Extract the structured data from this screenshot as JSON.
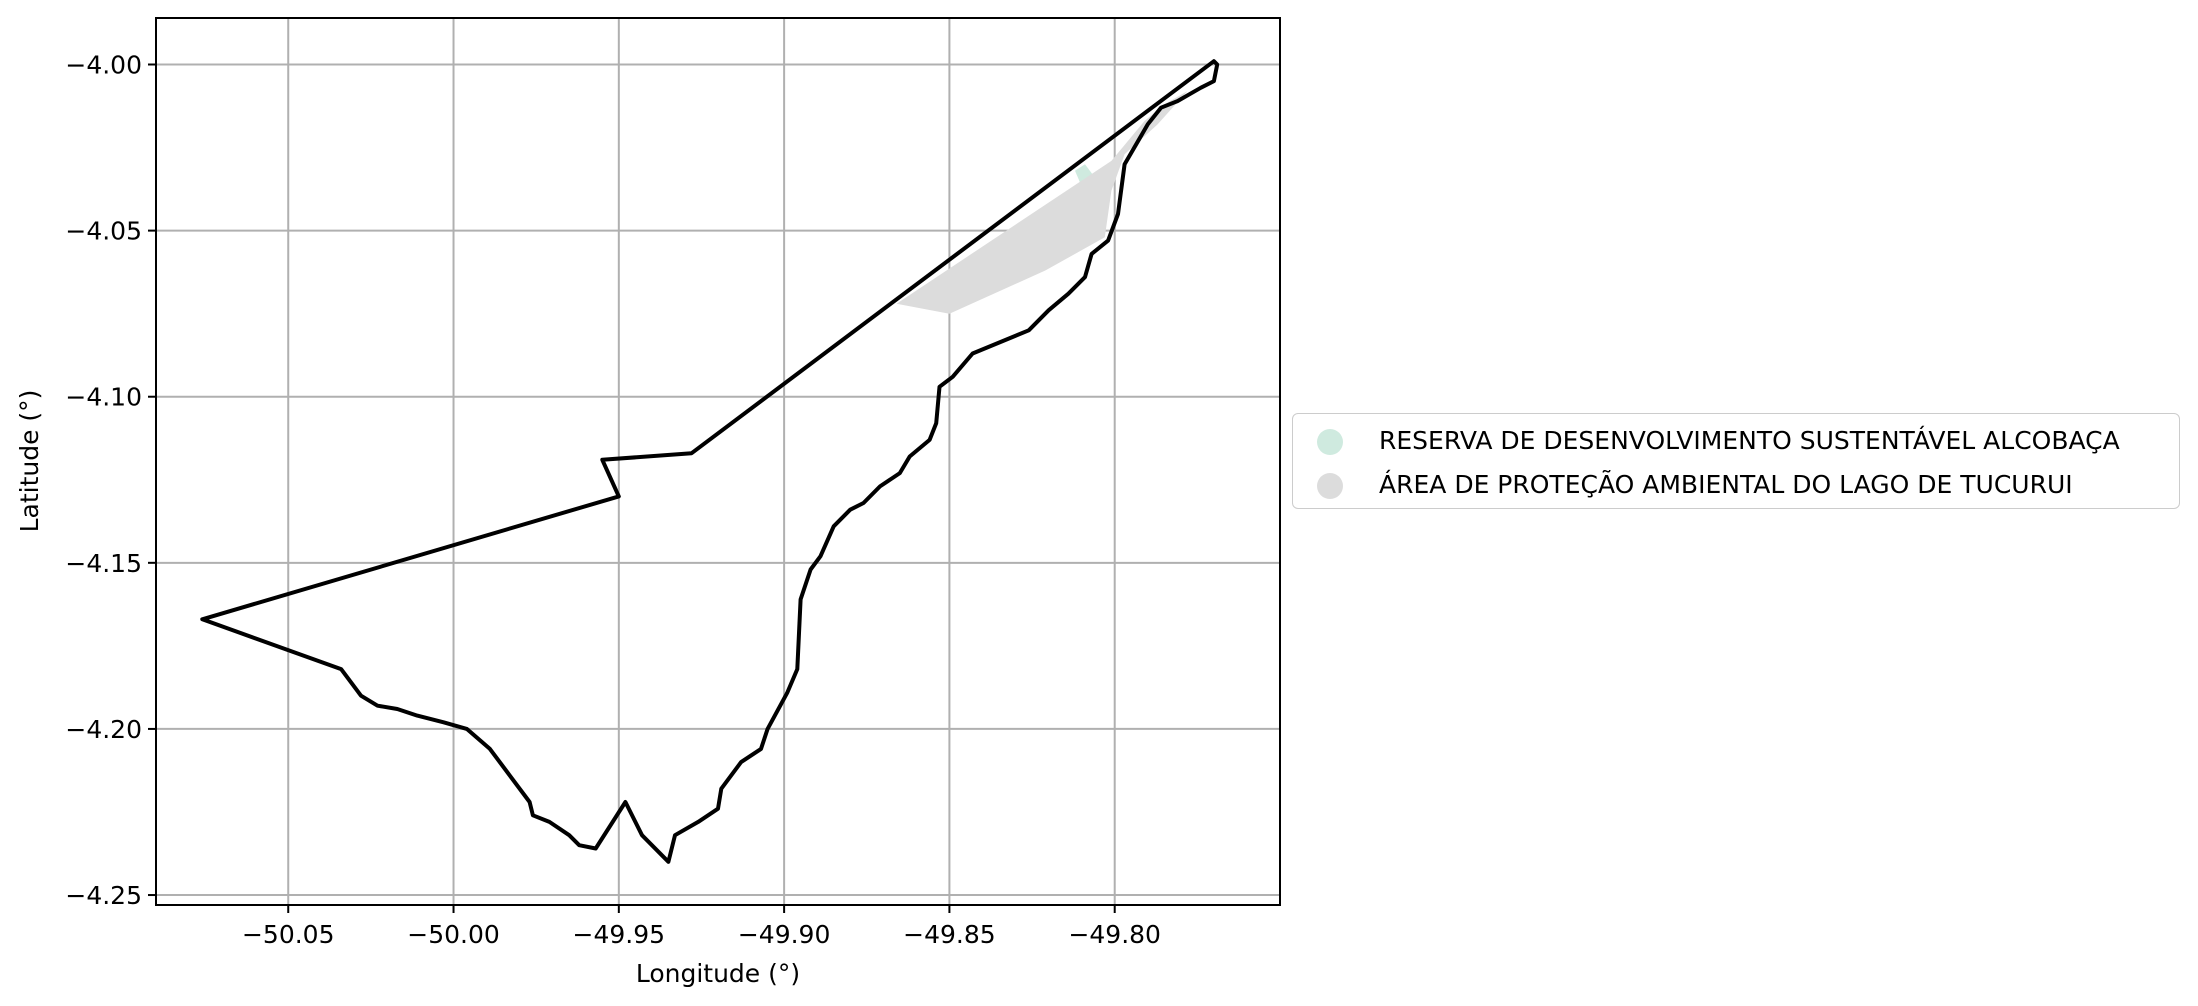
{
  "chart_data": {
    "type": "map",
    "xlabel": "Longitude (°)",
    "ylabel": "Latitude (°)",
    "xlim": [
      -50.09,
      -49.75
    ],
    "ylim": [
      -4.253,
      -3.986
    ],
    "xticks": [
      -50.05,
      -50.0,
      -49.95,
      -49.9,
      -49.85,
      -49.8
    ],
    "xtick_labels": [
      "−50.05",
      "−50.00",
      "−49.95",
      "−49.90",
      "−49.85",
      "−49.80"
    ],
    "yticks": [
      -4.0,
      -4.05,
      -4.1,
      -4.15,
      -4.2,
      -4.25
    ],
    "ytick_labels": [
      "−4.00",
      "−4.05",
      "−4.10",
      "−4.15",
      "−4.20",
      "−4.25"
    ],
    "grid": true,
    "legend_position": "right",
    "series": [
      {
        "name": "RESERVA DE DESENVOLVIMENTO SUSTENTÁVEL ALCOBAÇA",
        "color": "#cfeadf",
        "polygon": [
          [
            -49.812,
            -4.032
          ],
          [
            -49.809,
            -4.039
          ],
          [
            -49.806,
            -4.034
          ],
          [
            -49.809,
            -4.03
          ]
        ]
      },
      {
        "name": "ÁREA DE PROTEÇÃO AMBIENTAL DO LAGO DE TUCURUI",
        "color": "#dcdcdc",
        "polygon": [
          [
            -49.866,
            -4.072
          ],
          [
            -49.801,
            -4.029
          ],
          [
            -49.791,
            -4.017
          ],
          [
            -49.785,
            -4.012
          ],
          [
            -49.778,
            -4.008
          ],
          [
            -49.787,
            -4.018
          ],
          [
            -49.797,
            -4.027
          ],
          [
            -49.801,
            -4.038
          ],
          [
            -49.803,
            -4.052
          ],
          [
            -49.821,
            -4.062
          ],
          [
            -49.85,
            -4.075
          ]
        ]
      }
    ],
    "boundary": {
      "color": "#000000",
      "coordinates": [
        [
          -49.77,
          -3.999
        ],
        [
          -49.928,
          -4.117
        ],
        [
          -49.955,
          -4.119
        ],
        [
          -49.95,
          -4.13
        ],
        [
          -50.076,
          -4.167
        ],
        [
          -50.034,
          -4.182
        ],
        [
          -50.028,
          -4.19
        ],
        [
          -50.023,
          -4.193
        ],
        [
          -50.017,
          -4.194
        ],
        [
          -50.011,
          -4.196
        ],
        [
          -50.003,
          -4.198
        ],
        [
          -49.996,
          -4.2
        ],
        [
          -49.989,
          -4.206
        ],
        [
          -49.983,
          -4.214
        ],
        [
          -49.977,
          -4.222
        ],
        [
          -49.976,
          -4.226
        ],
        [
          -49.971,
          -4.228
        ],
        [
          -49.965,
          -4.232
        ],
        [
          -49.962,
          -4.235
        ],
        [
          -49.957,
          -4.236
        ],
        [
          -49.948,
          -4.222
        ],
        [
          -49.943,
          -4.232
        ],
        [
          -49.935,
          -4.24
        ],
        [
          -49.933,
          -4.232
        ],
        [
          -49.926,
          -4.228
        ],
        [
          -49.92,
          -4.224
        ],
        [
          -49.919,
          -4.218
        ],
        [
          -49.913,
          -4.21
        ],
        [
          -49.907,
          -4.206
        ],
        [
          -49.905,
          -4.2
        ],
        [
          -49.899,
          -4.189
        ],
        [
          -49.896,
          -4.182
        ],
        [
          -49.895,
          -4.161
        ],
        [
          -49.892,
          -4.152
        ],
        [
          -49.889,
          -4.148
        ],
        [
          -49.885,
          -4.139
        ],
        [
          -49.88,
          -4.134
        ],
        [
          -49.876,
          -4.132
        ],
        [
          -49.871,
          -4.127
        ],
        [
          -49.865,
          -4.123
        ],
        [
          -49.862,
          -4.118
        ],
        [
          -49.856,
          -4.113
        ],
        [
          -49.854,
          -4.108
        ],
        [
          -49.853,
          -4.097
        ],
        [
          -49.849,
          -4.094
        ],
        [
          -49.843,
          -4.087
        ],
        [
          -49.826,
          -4.08
        ],
        [
          -49.82,
          -4.074
        ],
        [
          -49.814,
          -4.069
        ],
        [
          -49.809,
          -4.064
        ],
        [
          -49.807,
          -4.057
        ],
        [
          -49.802,
          -4.053
        ],
        [
          -49.799,
          -4.045
        ],
        [
          -49.797,
          -4.03
        ],
        [
          -49.79,
          -4.018
        ],
        [
          -49.786,
          -4.013
        ],
        [
          -49.781,
          -4.011
        ],
        [
          -49.774,
          -4.007
        ],
        [
          -49.77,
          -4.005
        ],
        [
          -49.769,
          -4.0
        ],
        [
          -49.77,
          -3.999
        ]
      ]
    }
  }
}
